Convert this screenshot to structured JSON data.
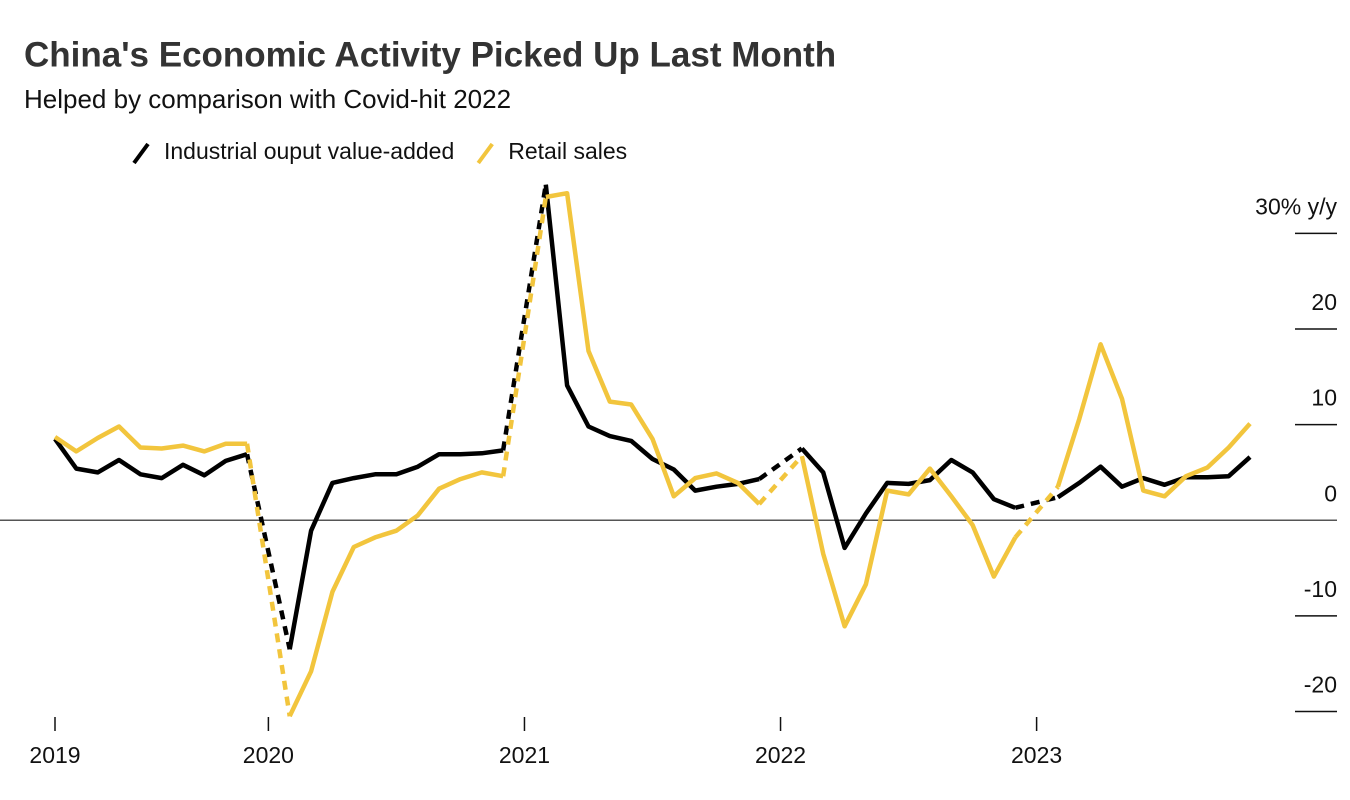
{
  "chart_data": {
    "type": "line",
    "title": "China's Economic Activity Picked Up Last Month",
    "subtitle": "Helped by comparison with Covid-hit 2022",
    "x": [
      "2019-03",
      "2019-04",
      "2019-05",
      "2019-06",
      "2019-07",
      "2019-08",
      "2019-09",
      "2019-10",
      "2019-11",
      "2019-12",
      "2020-01",
      "2020-02",
      "2020-03",
      "2020-04",
      "2020-05",
      "2020-06",
      "2020-07",
      "2020-08",
      "2020-09",
      "2020-10",
      "2020-11",
      "2020-12",
      "2021-01",
      "2021-02",
      "2021-03",
      "2021-04",
      "2021-05",
      "2021-06",
      "2021-07",
      "2021-08",
      "2021-09",
      "2021-10",
      "2021-11",
      "2021-12",
      "2022-01",
      "2022-02",
      "2022-03",
      "2022-04",
      "2022-05",
      "2022-06",
      "2022-07",
      "2022-08",
      "2022-09",
      "2022-10",
      "2022-11",
      "2022-12",
      "2023-01",
      "2023-02",
      "2023-03",
      "2023-04",
      "2023-05",
      "2023-06",
      "2023-07",
      "2023-08",
      "2023-09",
      "2023-10",
      "2023-11"
    ],
    "series": [
      {
        "name": "Industrial ouput value-added",
        "color": "#000000",
        "values": [
          8.5,
          5.4,
          5.0,
          6.3,
          4.8,
          4.4,
          5.8,
          4.7,
          6.2,
          6.9,
          null,
          -13.5,
          -1.1,
          3.9,
          4.4,
          4.8,
          4.8,
          5.6,
          6.9,
          6.9,
          7.0,
          7.3,
          null,
          35.1,
          14.1,
          9.8,
          8.8,
          8.3,
          6.4,
          5.3,
          3.1,
          3.5,
          3.8,
          4.3,
          null,
          7.5,
          5.0,
          -2.9,
          0.7,
          3.9,
          3.8,
          4.2,
          6.3,
          5.0,
          2.2,
          1.3,
          null,
          2.4,
          3.9,
          5.6,
          3.5,
          4.4,
          3.7,
          4.5,
          4.5,
          4.6,
          6.6
        ]
      },
      {
        "name": "Retail sales",
        "color": "#f2c53d",
        "values": [
          8.7,
          7.2,
          8.6,
          9.8,
          7.6,
          7.5,
          7.8,
          7.2,
          8.0,
          8.0,
          null,
          -20.5,
          -15.8,
          -7.5,
          -2.8,
          -1.8,
          -1.1,
          0.5,
          3.3,
          4.3,
          5.0,
          4.6,
          null,
          33.8,
          34.2,
          17.7,
          12.4,
          12.1,
          8.5,
          2.5,
          4.4,
          4.9,
          3.9,
          1.7,
          null,
          6.7,
          -3.5,
          -11.1,
          -6.7,
          3.1,
          2.7,
          5.4,
          2.5,
          -0.5,
          -5.9,
          -1.8,
          null,
          3.5,
          10.6,
          18.4,
          12.7,
          3.1,
          2.5,
          4.6,
          5.5,
          7.6,
          10.1
        ]
      }
    ],
    "xlim": [
      "2019-03",
      "2023-11"
    ],
    "xticks": [
      {
        "value": "2019-03",
        "label": "2019"
      },
      {
        "value": "2020-01",
        "label": "2020"
      },
      {
        "value": "2021-01",
        "label": "2021"
      },
      {
        "value": "2022-01",
        "label": "2022"
      },
      {
        "value": "2023-01",
        "label": "2023"
      }
    ],
    "ylim": [
      -21,
      36
    ],
    "yticks": [
      -20,
      -10,
      0,
      10,
      20,
      {
        "value": 30,
        "label": "30% y/y"
      }
    ]
  }
}
